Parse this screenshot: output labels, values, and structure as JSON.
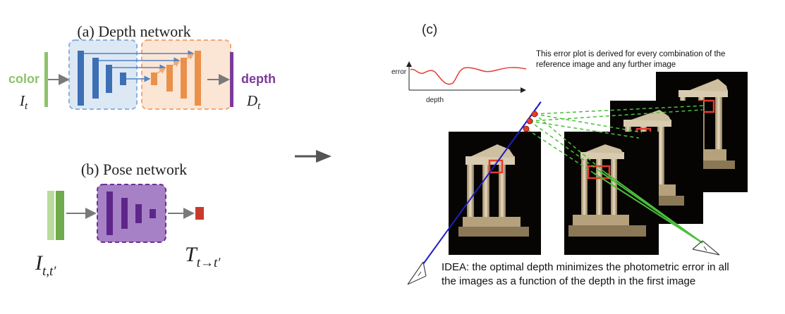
{
  "panel_a": {
    "title": "(a) Depth network",
    "input_label": "color",
    "input_symbol": "I",
    "input_sub": "t",
    "output_label": "depth",
    "output_symbol": "D",
    "output_sub": "t"
  },
  "panel_b": {
    "title": "(b) Pose network",
    "input_symbol": "I",
    "input_sub": "t,t′",
    "output_symbol": "T",
    "output_sub": "t→t′"
  },
  "panel_c": {
    "title": "(c)",
    "error_note_line1": "This error plot is derived for every combination of the",
    "error_note_line2": "reference image and any further image",
    "plot_ylabel": "error",
    "plot_xlabel": "depth",
    "idea_line1": "IDEA: the optimal depth minimizes the photometric error in all",
    "idea_line2": "the images as a function of the depth in the first image"
  },
  "colors": {
    "input_green": "#8fc36a",
    "depth_purple": "#7b3a99",
    "encoder_blue": "#3c6fb4",
    "decoder_orange": "#e9914a",
    "pose_purple": "#6b2f95",
    "pose_output_red": "#c83a2c",
    "ray_blue": "#1f1fbf",
    "ray_green": "#4bbf3a",
    "patch_red": "#e53b2b",
    "error_curve": "#e33d33"
  }
}
